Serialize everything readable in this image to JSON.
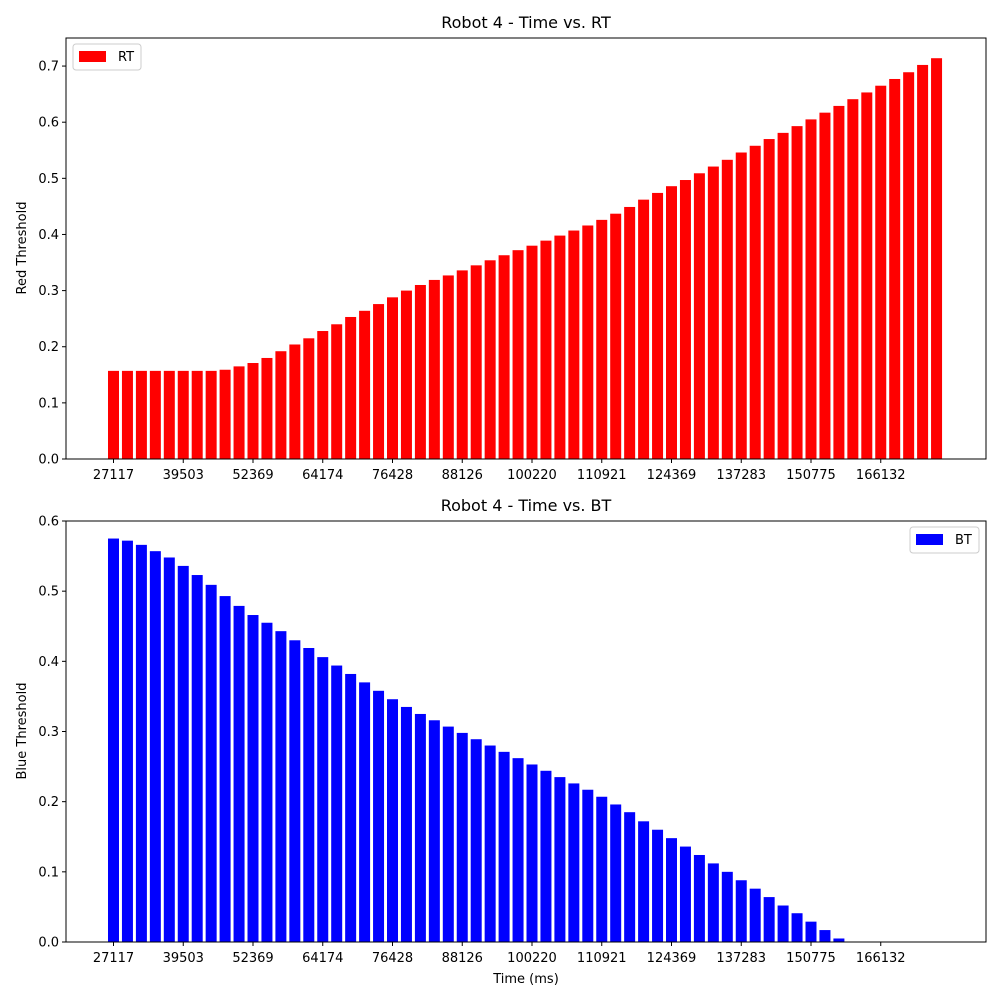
{
  "chart_data": [
    {
      "type": "bar",
      "title": "Robot 4 - Time vs. RT",
      "xlabel": "",
      "ylabel": "Red Threshold",
      "color": "#ff0000",
      "legend": {
        "label": "RT",
        "position": "top-left"
      },
      "grid": false,
      "ylim": [
        0,
        0.75
      ],
      "yticks": [
        0.0,
        0.1,
        0.2,
        0.3,
        0.4,
        0.5,
        0.6,
        0.7
      ],
      "ytick_labels": [
        "0.0",
        "0.1",
        "0.2",
        "0.3",
        "0.4",
        "0.5",
        "0.6",
        "0.7"
      ],
      "xticks": [
        {
          "index": 0,
          "label": "27117"
        },
        {
          "index": 5,
          "label": "39503"
        },
        {
          "index": 10,
          "label": "52369"
        },
        {
          "index": 15,
          "label": "64174"
        },
        {
          "index": 20,
          "label": "76428"
        },
        {
          "index": 25,
          "label": "88126"
        },
        {
          "index": 30,
          "label": "100220"
        },
        {
          "index": 35,
          "label": "110921"
        },
        {
          "index": 40,
          "label": "124369"
        },
        {
          "index": 45,
          "label": "137283"
        },
        {
          "index": 50,
          "label": "150775"
        },
        {
          "index": 55,
          "label": "166132"
        }
      ],
      "values": [
        0.157,
        0.157,
        0.157,
        0.157,
        0.157,
        0.157,
        0.157,
        0.157,
        0.159,
        0.165,
        0.171,
        0.18,
        0.192,
        0.204,
        0.215,
        0.228,
        0.24,
        0.253,
        0.264,
        0.276,
        0.288,
        0.3,
        0.31,
        0.319,
        0.327,
        0.336,
        0.345,
        0.354,
        0.363,
        0.372,
        0.38,
        0.389,
        0.398,
        0.407,
        0.416,
        0.426,
        0.437,
        0.449,
        0.462,
        0.474,
        0.486,
        0.497,
        0.509,
        0.521,
        0.533,
        0.546,
        0.558,
        0.57,
        0.581,
        0.593,
        0.605,
        0.617,
        0.629,
        0.641,
        0.653,
        0.665,
        0.677,
        0.689,
        0.702,
        0.714
      ]
    },
    {
      "type": "bar",
      "title": "Robot 4 - Time vs. BT",
      "xlabel": "Time (ms)",
      "ylabel": "Blue Threshold",
      "color": "#0000ff",
      "legend": {
        "label": "BT",
        "position": "top-right"
      },
      "grid": false,
      "ylim": [
        0,
        0.6
      ],
      "yticks": [
        0.0,
        0.1,
        0.2,
        0.3,
        0.4,
        0.5,
        0.6
      ],
      "ytick_labels": [
        "0.0",
        "0.1",
        "0.2",
        "0.3",
        "0.4",
        "0.5",
        "0.6"
      ],
      "xticks": [
        {
          "index": 0,
          "label": "27117"
        },
        {
          "index": 5,
          "label": "39503"
        },
        {
          "index": 10,
          "label": "52369"
        },
        {
          "index": 15,
          "label": "64174"
        },
        {
          "index": 20,
          "label": "76428"
        },
        {
          "index": 25,
          "label": "88126"
        },
        {
          "index": 30,
          "label": "100220"
        },
        {
          "index": 35,
          "label": "110921"
        },
        {
          "index": 40,
          "label": "124369"
        },
        {
          "index": 45,
          "label": "137283"
        },
        {
          "index": 50,
          "label": "150775"
        },
        {
          "index": 55,
          "label": "166132"
        }
      ],
      "values": [
        0.575,
        0.572,
        0.566,
        0.557,
        0.548,
        0.536,
        0.523,
        0.509,
        0.493,
        0.479,
        0.466,
        0.455,
        0.443,
        0.43,
        0.419,
        0.406,
        0.394,
        0.382,
        0.37,
        0.358,
        0.346,
        0.335,
        0.325,
        0.316,
        0.307,
        0.298,
        0.289,
        0.28,
        0.271,
        0.262,
        0.253,
        0.244,
        0.235,
        0.226,
        0.217,
        0.207,
        0.196,
        0.185,
        0.172,
        0.16,
        0.148,
        0.136,
        0.124,
        0.112,
        0.1,
        0.088,
        0.076,
        0.064,
        0.052,
        0.041,
        0.029,
        0.017,
        0.005,
        0.0,
        0.0,
        0.0,
        0.0,
        0.0,
        0.0,
        0.0
      ]
    }
  ]
}
